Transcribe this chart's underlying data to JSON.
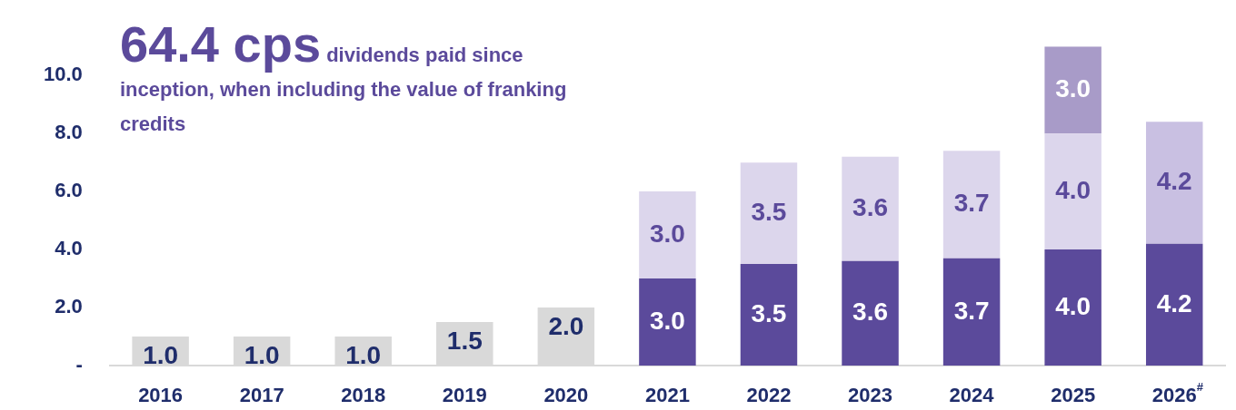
{
  "chart_data": {
    "type": "bar",
    "title": "64.4 cps",
    "subtitle": "dividends paid since inception, when including the value of franking credits",
    "categories": [
      "2016",
      "2017",
      "2018",
      "2019",
      "2020",
      "2021",
      "2022",
      "2023",
      "2024",
      "2025",
      "2026$^{#}$"
    ],
    "series": [
      {
        "color": "#d9d9d9",
        "values": [
          1.0,
          1.0,
          1.0,
          1.5,
          2.0,
          null,
          null,
          null,
          null,
          null,
          null
        ],
        "value_labels": [
          "1.0",
          "1.0",
          "1.0",
          "1.5",
          "2.0",
          null,
          null,
          null,
          null,
          null,
          null
        ]
      },
      {
        "color": "#5b4a9b",
        "values": [
          null,
          null,
          null,
          null,
          null,
          3.0,
          3.5,
          3.6,
          3.7,
          4.0,
          4.2
        ],
        "value_labels": [
          null,
          null,
          null,
          null,
          null,
          "3.0",
          "3.5",
          "3.6",
          "3.7",
          "4.0",
          "4.2"
        ]
      },
      {
        "color": "#dcd6ec",
        "values": [
          null,
          null,
          null,
          null,
          null,
          3.0,
          3.5,
          3.6,
          3.7,
          4.0,
          null
        ],
        "value_labels": [
          null,
          null,
          null,
          null,
          null,
          "3.0",
          "3.5",
          "3.6",
          "3.7",
          "4.0",
          null
        ]
      },
      {
        "color": "#c9c0e2",
        "values": [
          null,
          null,
          null,
          null,
          null,
          null,
          null,
          null,
          null,
          null,
          4.2
        ],
        "value_labels": [
          null,
          null,
          null,
          null,
          null,
          null,
          null,
          null,
          null,
          null,
          "4.2"
        ]
      },
      {
        "color": "#a89bc8",
        "values": [
          null,
          null,
          null,
          null,
          null,
          null,
          null,
          null,
          null,
          3.0,
          null
        ],
        "value_labels": [
          null,
          null,
          null,
          null,
          null,
          null,
          null,
          null,
          null,
          "3.0",
          null
        ]
      }
    ],
    "stacked": true,
    "ylim": [
      0,
      11
    ],
    "yticks": [
      {
        "value": 0,
        "label": "-"
      },
      {
        "value": 2,
        "label": "2.0"
      },
      {
        "value": 4,
        "label": "4.0"
      },
      {
        "value": 6,
        "label": "6.0"
      },
      {
        "value": 8,
        "label": "8.0"
      },
      {
        "value": 10,
        "label": "10.0"
      }
    ],
    "grid": false,
    "legend": false
  }
}
